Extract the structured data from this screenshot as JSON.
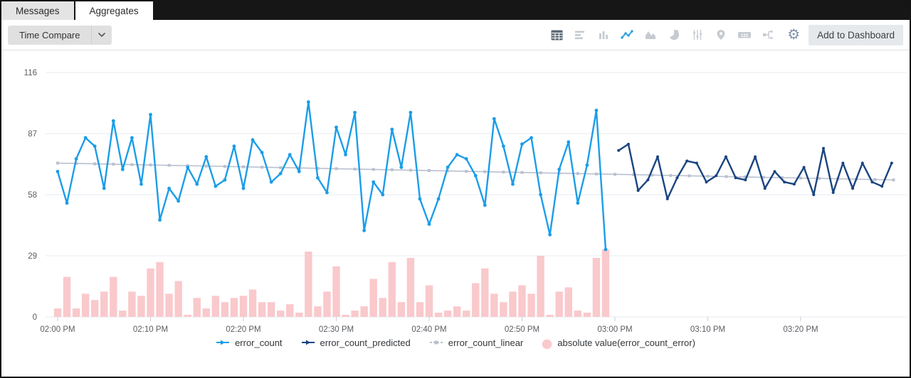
{
  "tabs": [
    {
      "label": "Messages",
      "active": false
    },
    {
      "label": "Aggregates",
      "active": true
    }
  ],
  "toolbar": {
    "time_compare_label": "Time Compare",
    "add_to_dashboard_label": "Add to Dashboard",
    "numeric_icon_text": "123",
    "icons": [
      "table",
      "horizontal-bar-chart",
      "column-chart",
      "line-chart",
      "area-chart",
      "pie-chart",
      "sliders",
      "map-pin",
      "numeric-display",
      "flow-diagram",
      "gear"
    ],
    "active_chart_type": "line-chart"
  },
  "colors": {
    "error_count": "#1b9de8",
    "error_count_predicted": "#1a4480",
    "error_count_linear": "#b9c0cf",
    "error_bar": "#f9c9cc",
    "grid": "#e6ebf2",
    "axis_text": "#595d62",
    "tick": "#c9ced3"
  },
  "chart_data": {
    "type": "line",
    "title": "",
    "xlabel": "",
    "ylabel": "",
    "grid": true,
    "legend_position": "bottom",
    "y_axis": {
      "ticks": [
        0,
        29,
        58,
        87,
        116
      ],
      "range": [
        0,
        116
      ]
    },
    "x_axis": {
      "tick_minutes": [
        0,
        10,
        20,
        30,
        40,
        50,
        60,
        70,
        80
      ],
      "tick_labels": [
        "02:00 PM",
        "02:10 PM",
        "02:20 PM",
        "02:30 PM",
        "02:40 PM",
        "02:50 PM",
        "03:00 PM",
        "03:10 PM",
        "03:20 PM"
      ],
      "minutes_span": [
        0,
        91
      ]
    },
    "series": [
      {
        "name": "error_count",
        "type": "line",
        "color": "#1b9de8",
        "start_minute": 0,
        "minute_step": 1,
        "values": [
          69,
          54,
          75,
          85,
          81,
          61,
          93,
          70,
          85,
          63,
          96,
          46,
          61,
          55,
          71,
          63,
          76,
          62,
          65,
          81,
          61,
          84,
          78,
          64,
          68,
          77,
          69,
          102,
          66,
          59,
          90,
          77,
          97,
          41,
          64,
          58,
          89,
          71,
          97,
          56,
          44,
          56,
          71,
          77,
          75,
          67,
          53,
          94,
          81,
          63,
          82,
          85,
          58,
          39,
          70,
          83,
          54,
          72,
          98,
          32
        ]
      },
      {
        "name": "error_count_predicted",
        "type": "line",
        "color": "#1a4480",
        "start_minute": 60.4,
        "minute_step": 1.05,
        "values": [
          79,
          82,
          60,
          65,
          76,
          56,
          66,
          74,
          73,
          64,
          67,
          76,
          66,
          65,
          76,
          61,
          69,
          64,
          63,
          71,
          58,
          80,
          59,
          73,
          61,
          73,
          64,
          62,
          73
        ]
      },
      {
        "name": "error_count_linear",
        "type": "trend",
        "color": "#b9c0cf",
        "points": [
          {
            "minute": 0,
            "value": 73
          },
          {
            "minute": 90,
            "value": 65
          }
        ],
        "marker_every_minutes": 2
      },
      {
        "name": "absolute value(error_count_error)",
        "type": "bar",
        "color": "#f9c9cc",
        "start_minute": 0,
        "minute_step": 1,
        "values": [
          4,
          19,
          4,
          11,
          8,
          12,
          19,
          3,
          12,
          10,
          23,
          26,
          11,
          17,
          1,
          9,
          4,
          10,
          7,
          9,
          10,
          13,
          7,
          7,
          3,
          6,
          2,
          31,
          5,
          12,
          24,
          1,
          3,
          5,
          18,
          9,
          26,
          7,
          28,
          7,
          15,
          2,
          3,
          5,
          3,
          16,
          23,
          11,
          7,
          12,
          15,
          11,
          29,
          1,
          12,
          14,
          3,
          2,
          28,
          32
        ]
      }
    ]
  }
}
